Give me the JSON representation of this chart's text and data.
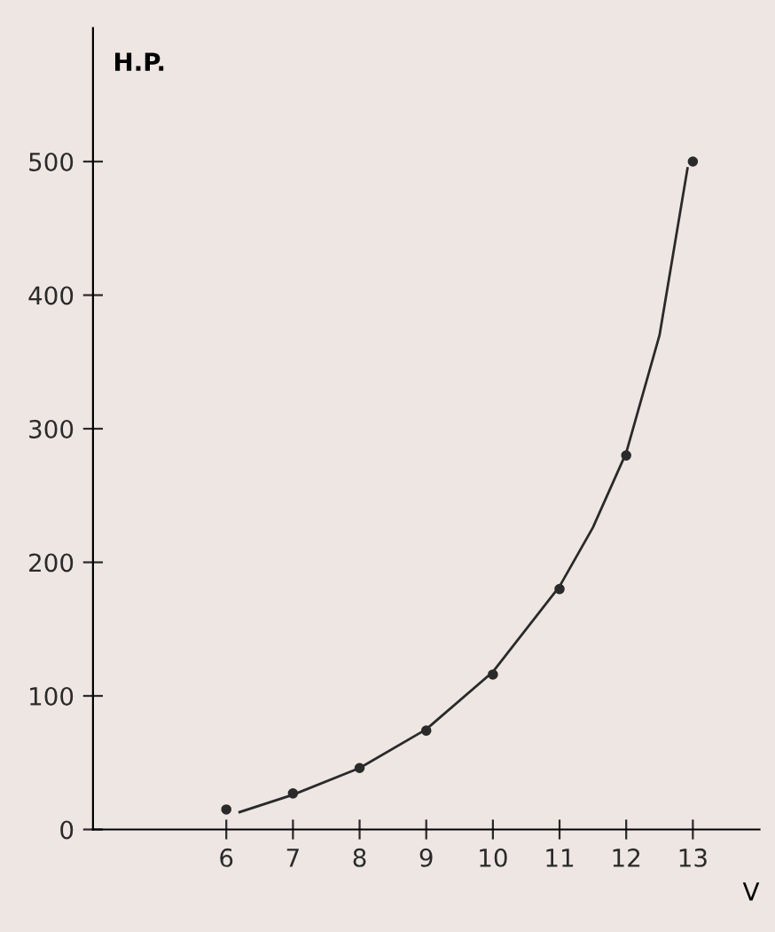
{
  "chart_data": {
    "type": "scatter",
    "xlabel": "V",
    "ylabel": "H.P.",
    "grid": false,
    "xlim": [
      4,
      14
    ],
    "ylim": [
      0,
      600
    ],
    "xticks": [
      6,
      7,
      8,
      9,
      10,
      11,
      12,
      13
    ],
    "yticks": [
      0,
      100,
      200,
      300,
      400,
      500
    ],
    "series": [
      {
        "marker": "circle",
        "color": "#2a2a2a",
        "x": [
          6,
          7,
          8,
          9,
          10,
          11,
          12,
          13
        ],
        "values": [
          15,
          27,
          46,
          74,
          116,
          180,
          280,
          500
        ]
      },
      {
        "type": "line",
        "marker": "none",
        "color": "#2a2a2a",
        "line_style": "solid",
        "x": [
          6.2,
          7,
          8,
          9,
          10,
          11,
          11.5,
          12,
          12.5,
          12.92
        ],
        "values": [
          13,
          26,
          46,
          75,
          118,
          182,
          226,
          282,
          370,
          495
        ]
      }
    ]
  }
}
